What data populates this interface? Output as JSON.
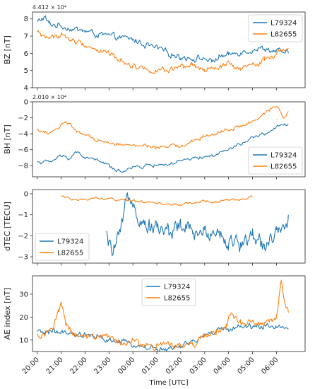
{
  "colors": {
    "blue": "#1f77b4",
    "orange": "#ff7f0e"
  },
  "x_axis": {
    "label": "Time [UTC]",
    "range": [
      19.8,
      31.2
    ],
    "ticks": [
      {
        "x": 20,
        "label": "20:00"
      },
      {
        "x": 21,
        "label": "21:00"
      },
      {
        "x": 22,
        "label": "22:00"
      },
      {
        "x": 23,
        "label": "23:00"
      },
      {
        "x": 24,
        "label": "00:00"
      },
      {
        "x": 25,
        "label": "01:00"
      },
      {
        "x": 26,
        "label": "02:00"
      },
      {
        "x": 27,
        "label": "03:00"
      },
      {
        "x": 28,
        "label": "04:00"
      },
      {
        "x": 29,
        "label": "05:00"
      },
      {
        "x": 30,
        "label": "06:00"
      }
    ]
  },
  "chart_data": [
    {
      "type": "line",
      "ylabel": "BZ [nT]",
      "offset_label": "4.412 × 10⁴",
      "ylim": [
        4,
        8.4
      ],
      "yticks": [
        4,
        5,
        6,
        7,
        8
      ],
      "legend": "top-right",
      "series": [
        {
          "name": "L79324",
          "color": "blue",
          "noise": 0.14,
          "jitter": 0.04,
          "x": [
            20,
            20.3,
            20.5,
            21,
            21.5,
            22,
            22.5,
            23,
            23.5,
            24,
            24.5,
            25,
            25.5,
            26,
            26.5,
            27,
            27.3,
            27.6,
            28,
            28.5,
            29,
            29.5,
            30,
            30.5
          ],
          "y": [
            7.8,
            8.1,
            7.7,
            7.6,
            7.4,
            7.3,
            7.1,
            7.0,
            6.9,
            6.8,
            6.5,
            6.3,
            6.0,
            5.8,
            5.7,
            5.7,
            5.5,
            5.8,
            5.9,
            6.1,
            6.2,
            6.3,
            6.1,
            6.0
          ]
        },
        {
          "name": "L82655",
          "color": "orange",
          "noise": 0.13,
          "jitter": 0.04,
          "x": [
            20,
            20.3,
            20.6,
            21,
            21.5,
            22,
            22.5,
            23,
            23.5,
            24,
            24.5,
            25,
            25.5,
            26,
            26.5,
            27,
            27.5,
            28,
            28.5,
            28.9,
            29.5,
            30,
            30.5
          ],
          "y": [
            7.2,
            7.0,
            6.9,
            7.1,
            6.7,
            6.5,
            6.2,
            6.0,
            5.6,
            5.3,
            5.1,
            5.0,
            5.0,
            5.1,
            5.3,
            5.0,
            5.1,
            5.4,
            5.0,
            5.3,
            5.6,
            6.0,
            6.3
          ]
        }
      ]
    },
    {
      "type": "line",
      "ylabel": "BH [nT]",
      "offset_label": "2.010 × 10⁴",
      "ylim": [
        -9.4,
        0
      ],
      "yticks": [
        -8,
        -6,
        -4,
        -2,
        0
      ],
      "legend": "bottom-right",
      "series": [
        {
          "name": "L79324",
          "color": "blue",
          "noise": 0.2,
          "jitter": 0.05,
          "x": [
            20,
            20.5,
            21,
            21.3,
            21.6,
            22,
            22.5,
            23,
            23.3,
            23.6,
            24,
            24.5,
            25,
            25.5,
            26,
            26.5,
            27,
            27.5,
            28,
            28.5,
            29,
            29.5,
            30,
            30.5
          ],
          "y": [
            -7.5,
            -7.6,
            -6.8,
            -7.1,
            -6.2,
            -7.0,
            -7.3,
            -8.0,
            -8.8,
            -8.5,
            -8.3,
            -8.0,
            -7.9,
            -7.8,
            -7.5,
            -7.2,
            -7.0,
            -6.6,
            -6.0,
            -5.3,
            -4.6,
            -4.0,
            -3.3,
            -2.8
          ]
        },
        {
          "name": "L82655",
          "color": "orange",
          "noise": 0.2,
          "jitter": 0.05,
          "x": [
            20,
            20.5,
            21,
            21.3,
            21.6,
            22,
            22.5,
            23,
            23.5,
            24,
            24.5,
            25,
            25.5,
            26,
            26.5,
            27,
            27.5,
            28,
            28.5,
            29,
            29.5,
            30,
            30.3,
            30.5
          ],
          "y": [
            -3.5,
            -3.9,
            -3.0,
            -2.7,
            -3.5,
            -4.3,
            -4.9,
            -5.0,
            -5.3,
            -5.6,
            -5.4,
            -5.8,
            -5.6,
            -5.5,
            -5.0,
            -4.4,
            -3.9,
            -3.4,
            -3.1,
            -2.5,
            -1.6,
            -0.5,
            -1.8,
            -1.2
          ]
        }
      ]
    },
    {
      "type": "line",
      "ylabel": "dTEC [TECU]",
      "offset_label": "",
      "ylim": [
        -3.3,
        0.2
      ],
      "yticks": [
        -3,
        -2,
        -1,
        0
      ],
      "legend": "bottom-left",
      "series": [
        {
          "name": "L79324",
          "color": "blue",
          "noise": 0.3,
          "jitter": 0.035,
          "x": [
            22.9,
            23.1,
            23.3,
            23.5,
            23.7,
            24.0,
            24.2,
            24.5,
            25,
            25.5,
            26,
            26.5,
            27,
            27.5,
            28,
            28.5,
            29,
            29.5,
            30,
            30.3,
            30.5
          ],
          "y": [
            -2.0,
            -2.8,
            -2.4,
            -1.9,
            -0.5,
            -0.1,
            -1.0,
            -1.4,
            -1.6,
            -1.8,
            -1.5,
            -1.9,
            -1.9,
            -1.7,
            -2.3,
            -2.4,
            -2.0,
            -2.4,
            -1.9,
            -2.0,
            -1.0
          ]
        },
        {
          "name": "L82655",
          "color": "orange",
          "noise": 0.05,
          "jitter": 0.05,
          "x": [
            21,
            21.5,
            22,
            22.5,
            23,
            23.5,
            24,
            24.5,
            25,
            25.5,
            26,
            26.5,
            27,
            27.5,
            28,
            28.5,
            29
          ],
          "y": [
            -0.15,
            -0.25,
            -0.3,
            -0.2,
            -0.25,
            -0.3,
            -0.35,
            -0.4,
            -0.45,
            -0.5,
            -0.5,
            -0.45,
            -0.35,
            -0.4,
            -0.3,
            -0.25,
            -0.15
          ]
        }
      ]
    },
    {
      "type": "line",
      "ylabel": "AE index [nT]",
      "offset_label": "",
      "ylim": [
        5,
        38
      ],
      "yticks": [
        10,
        20,
        30
      ],
      "legend": "top-center",
      "series": [
        {
          "name": "L79324",
          "color": "blue",
          "noise": 1.0,
          "jitter": 0.04,
          "x": [
            20,
            20.5,
            21,
            21.5,
            22,
            22.5,
            23,
            23.5,
            24,
            24.5,
            25,
            25.5,
            26,
            26.5,
            27,
            27.5,
            28,
            28.5,
            29,
            29.5,
            30,
            30.5
          ],
          "y": [
            13,
            14,
            13,
            12,
            12,
            11,
            10,
            9,
            8,
            7,
            6,
            6,
            7,
            9,
            12,
            14,
            15,
            16,
            16,
            16,
            16,
            15
          ]
        },
        {
          "name": "L82655",
          "color": "orange",
          "noise": 1.3,
          "jitter": 0.04,
          "x": [
            20,
            20.4,
            20.7,
            20.9,
            21.0,
            21.2,
            21.5,
            22,
            22.5,
            23,
            23.5,
            24,
            24.5,
            25,
            25.5,
            26,
            26.5,
            27,
            27.5,
            27.9,
            28.1,
            28.5,
            29,
            29.5,
            30,
            30.2,
            30.4,
            30.5
          ],
          "y": [
            12,
            13,
            16,
            22,
            27,
            17,
            13,
            12,
            11,
            11,
            9,
            9,
            8,
            7,
            8,
            8,
            8,
            11,
            14,
            16,
            22,
            17,
            17,
            18,
            20,
            36,
            24,
            22
          ]
        }
      ]
    }
  ]
}
